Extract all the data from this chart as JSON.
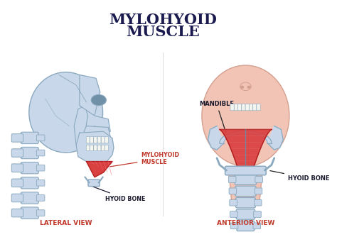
{
  "title_line1": "MYLOHYOID",
  "title_line2": "MUSCLE",
  "title_color": "#1a1a4e",
  "title_fontsize": 15,
  "background_color": "#ffffff",
  "label_lateral_view": "LATERAL VIEW",
  "label_anterior_view": "ANTERIOR VIEW",
  "label_color_view": "#c0392b",
  "label_mandible": "MANDIBLE",
  "label_hyoid_bone_left": "HYOID BONE",
  "label_hyoid_bone_right": "HYOID BONE",
  "label_mylohyoid": "MYLOHYOID\nMUSCLE",
  "label_color_dark": "#1a1a2e",
  "label_color_red": "#c0392b",
  "skull_fill": "#c8d8ea",
  "skull_stroke": "#8aa8be",
  "skull_dark": "#7090a8",
  "muscle_fill": "#d94040",
  "muscle_stroke": "#b02020",
  "muscle_light": "#e87070",
  "face_fill": "#f2c4b5",
  "face_stroke": "#d4a090",
  "bone_fill": "#c8d8ea",
  "bone_stroke": "#8aa8be",
  "white": "#ffffff",
  "teeth_color": "#f5f5f0"
}
